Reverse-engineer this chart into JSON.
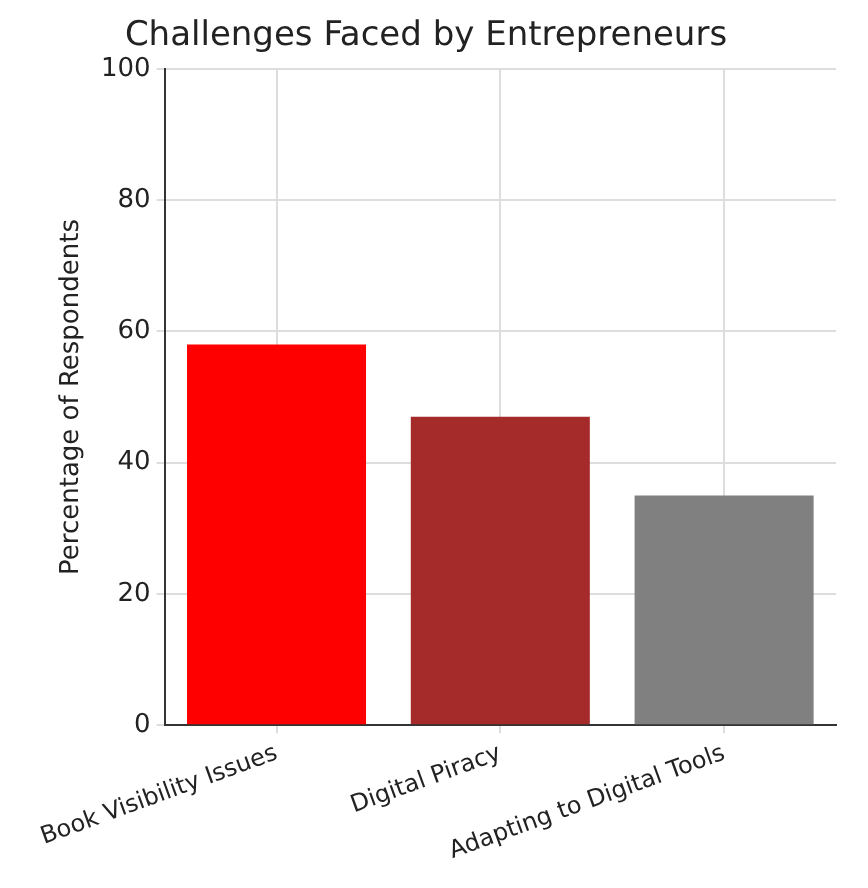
{
  "chart_data": {
    "type": "bar",
    "title": "Challenges Faced by Entrepreneurs",
    "ylabel": "Percentage of Respondents",
    "categories": [
      "Book Visibility Issues",
      "Digital Piracy",
      "Adapting to Digital Tools"
    ],
    "values": [
      58,
      47,
      35
    ],
    "colors": [
      "#ff0000",
      "#a52a2a",
      "#808080"
    ],
    "ylim": [
      0,
      100
    ],
    "yticks": [
      0,
      20,
      40,
      60,
      80,
      100
    ],
    "grid": true
  }
}
